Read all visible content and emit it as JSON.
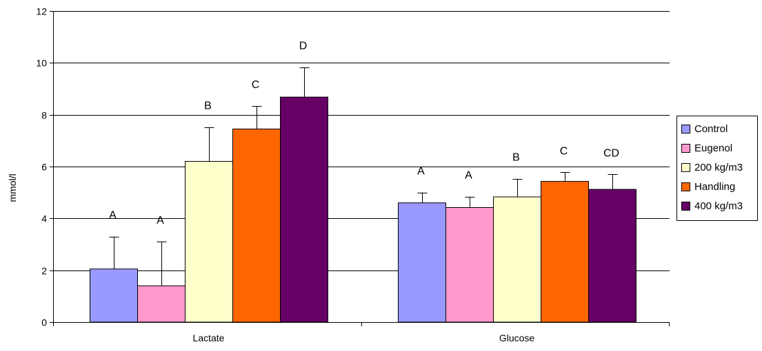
{
  "chart_data": {
    "type": "bar",
    "ylabel": "mmol/l",
    "xlabel": "",
    "ylim": [
      0,
      12
    ],
    "yticks": [
      0,
      2,
      4,
      6,
      8,
      10,
      12
    ],
    "grid": true,
    "legend_position": "right",
    "categories": [
      "Lactate",
      "Glucose"
    ],
    "series": [
      {
        "name": "Control",
        "color": "#9999FF",
        "values": [
          2.05,
          4.6
        ],
        "errors": [
          1.25,
          0.4
        ],
        "letters": [
          "A",
          "A"
        ]
      },
      {
        "name": "Eugenol",
        "color": "#FF99CC",
        "values": [
          1.4,
          4.42
        ],
        "errors": [
          1.7,
          0.42
        ],
        "letters": [
          "A",
          "A"
        ]
      },
      {
        "name": "200 kg/m3",
        "color": "#FFFFCC",
        "values": [
          6.2,
          4.83
        ],
        "errors": [
          1.32,
          0.7
        ],
        "letters": [
          "B",
          "B"
        ]
      },
      {
        "name": "Handling",
        "color": "#FF6600",
        "values": [
          7.45,
          5.43
        ],
        "errors": [
          0.88,
          0.35
        ],
        "letters": [
          "C",
          "C"
        ]
      },
      {
        "name": "400 kg/m3",
        "color": "#660066",
        "values": [
          8.68,
          5.12
        ],
        "errors": [
          1.15,
          0.58
        ],
        "letters": [
          "D",
          "CD"
        ]
      }
    ]
  }
}
